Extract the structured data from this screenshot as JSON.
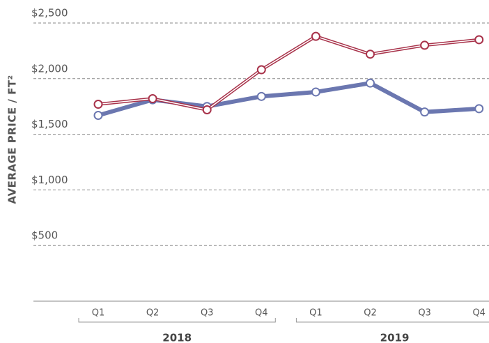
{
  "chart_data": {
    "type": "line",
    "y_label": "AVERAGE PRICE / FT²",
    "categories": [
      "Q1",
      "Q2",
      "Q3",
      "Q4",
      "Q1",
      "Q2",
      "Q3",
      "Q4"
    ],
    "groups": [
      {
        "label": "2018",
        "size": 4
      },
      {
        "label": "2019",
        "size": 4
      }
    ],
    "series": [
      {
        "color": "#6b77b0",
        "values": [
          1670,
          1810,
          1750,
          1840,
          1880,
          1960,
          1700,
          1730
        ]
      },
      {
        "color": "#a8324a",
        "values": [
          1770,
          1820,
          1720,
          2080,
          2380,
          2220,
          2300,
          2350
        ]
      }
    ],
    "ylim": [
      0,
      2500
    ],
    "yticks": [
      {
        "value": 500,
        "label": "$500"
      },
      {
        "value": 1000,
        "label": "$1,000"
      },
      {
        "value": 1500,
        "label": "$1,500"
      },
      {
        "value": 2000,
        "label": "$2,000"
      },
      {
        "value": 2500,
        "label": "$2,500"
      }
    ],
    "grid": true
  }
}
